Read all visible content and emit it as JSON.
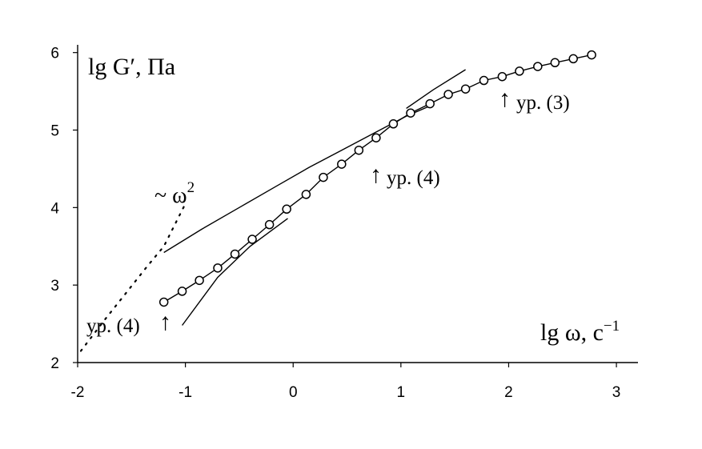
{
  "chart_data": {
    "type": "scatter",
    "x_ticks": [
      "-2",
      "-1",
      "0",
      "1",
      "2",
      "3"
    ],
    "y_ticks": [
      "2",
      "3",
      "4",
      "5",
      "6"
    ],
    "xlim": [
      -2,
      3.2
    ],
    "ylim": [
      2,
      6.1
    ],
    "grid": false,
    "legend": "none",
    "xlabel": {
      "main": "lg ω, c",
      "sup": "−1"
    },
    "ylabel": "lg G′, Па",
    "annotations": {
      "omega2": {
        "main": "~ ω",
        "sup": "2"
      },
      "eq4_left": "ур. (4)",
      "eq4_mid": "ур. (4)",
      "eq3": "ур. (3)",
      "arrow": "↑"
    },
    "series": [
      {
        "marker": "open-circle",
        "x": [
          -1.2,
          -1.03,
          -0.87,
          -0.7,
          -0.54,
          -0.38,
          -0.22,
          -0.06,
          0.12,
          0.28,
          0.45,
          0.61,
          0.77,
          0.93,
          1.09,
          1.27,
          1.44,
          1.6,
          1.77,
          1.94,
          2.1,
          2.27,
          2.43,
          2.6,
          2.77
        ],
        "y": [
          2.78,
          2.92,
          3.06,
          3.22,
          3.4,
          3.59,
          3.78,
          3.98,
          4.17,
          4.39,
          4.56,
          4.74,
          4.9,
          5.08,
          5.22,
          5.34,
          5.46,
          5.53,
          5.64,
          5.69,
          5.76,
          5.82,
          5.87,
          5.92,
          5.97
        ]
      }
    ],
    "lines": [
      {
        "style": "solid",
        "x": [
          -1.2,
          -0.85,
          -0.5,
          -0.15,
          0.15,
          0.45,
          0.75,
          1.05,
          1.25
        ],
        "y": [
          3.42,
          3.72,
          4.0,
          4.28,
          4.52,
          4.74,
          4.96,
          5.18,
          5.3
        ]
      },
      {
        "style": "solid",
        "x": [
          -1.03,
          -0.7,
          -0.4,
          -0.05
        ],
        "y": [
          2.48,
          3.1,
          3.5,
          3.86
        ]
      },
      {
        "style": "solid",
        "x": [
          1.05,
          1.3,
          1.6
        ],
        "y": [
          5.28,
          5.52,
          5.78
        ]
      },
      {
        "style": "dotted",
        "x": [
          -1.97,
          -1.75,
          -1.55,
          -1.35,
          -1.2,
          -1.0
        ],
        "y": [
          2.15,
          2.55,
          2.9,
          3.25,
          3.5,
          4.05
        ]
      }
    ]
  }
}
